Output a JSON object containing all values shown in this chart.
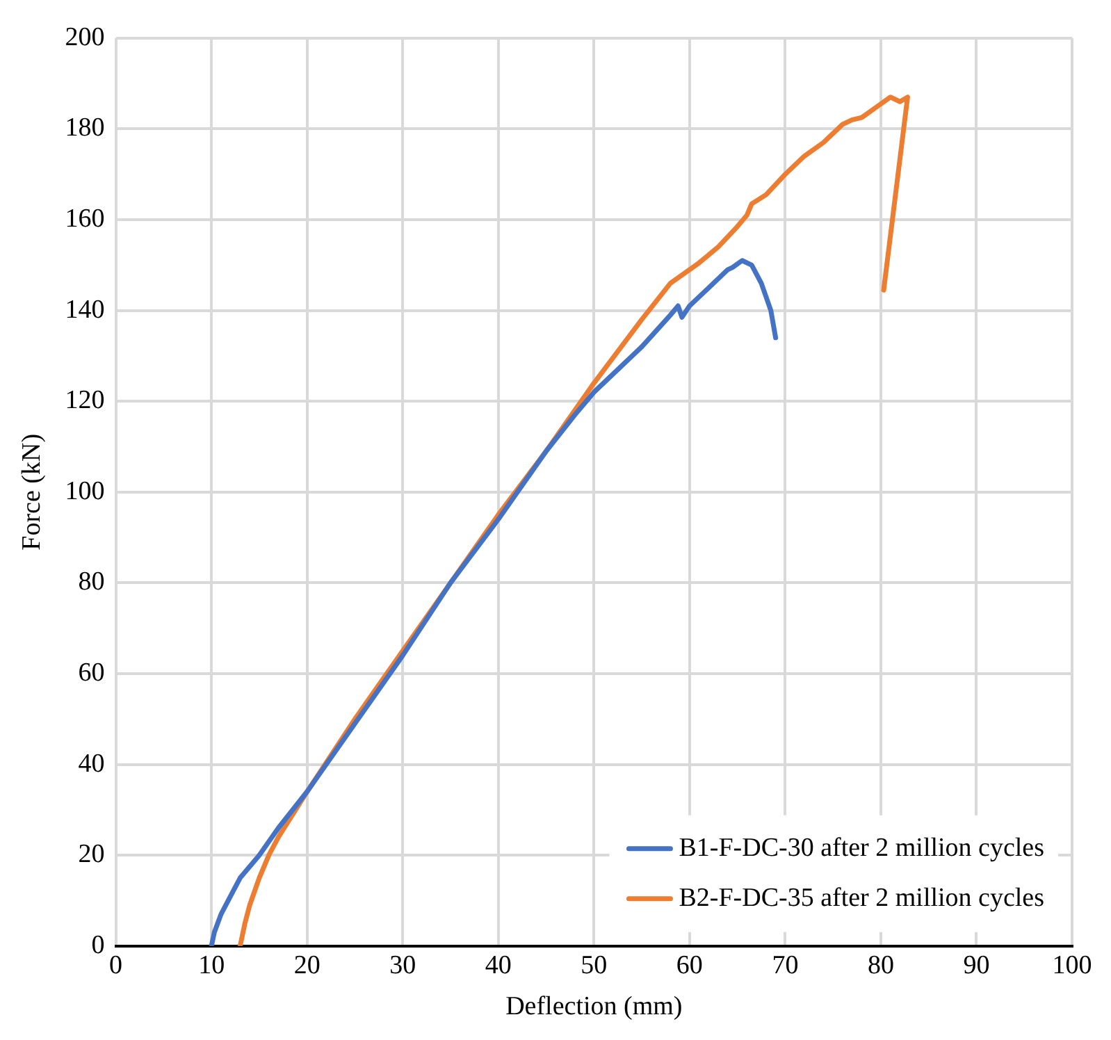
{
  "chart_data": {
    "type": "line",
    "xlabel": "Deflection (mm)",
    "ylabel": "Force (kN)",
    "xlim": [
      0,
      100
    ],
    "xticks": [
      0,
      10,
      20,
      30,
      40,
      50,
      60,
      70,
      80,
      90,
      100
    ],
    "ylim": [
      0,
      200
    ],
    "yticks": [
      0,
      20,
      40,
      60,
      80,
      100,
      120,
      140,
      160,
      180,
      200
    ],
    "grid": true,
    "legend": "bottom right",
    "marker": "none",
    "line_style": "solid",
    "series": [
      {
        "name": "B1-F-DC-30 after 2 million cycles",
        "color": "#4472c4",
        "x": [
          10,
          10.3,
          11,
          12,
          13,
          15,
          17,
          20,
          25,
          30,
          35,
          40,
          45,
          48,
          50,
          55,
          58,
          58.8,
          59.2,
          60,
          62,
          64,
          64.5,
          65.5,
          66.5,
          67.5,
          68.5,
          69
        ],
        "values": [
          0,
          3,
          7,
          11,
          15,
          20,
          26,
          34,
          49,
          64,
          80,
          94,
          109,
          117,
          122,
          132,
          139,
          141,
          138.5,
          141,
          145,
          149,
          149.5,
          151,
          150,
          146,
          140,
          134
        ]
      },
      {
        "name": "B2-F-DC-35 after 2 million cycles",
        "color": "#ed7d31",
        "x": [
          13,
          13.5,
          14,
          15,
          16,
          17,
          20,
          25,
          30,
          35,
          40,
          45,
          50,
          55,
          58,
          60,
          61,
          63,
          65,
          66,
          66.5,
          68,
          70,
          72,
          74,
          76,
          77,
          78,
          80,
          81,
          82,
          82.8,
          80.3
        ],
        "values": [
          0,
          5,
          9,
          15,
          20,
          24,
          34,
          50,
          65,
          80,
          95,
          109,
          124,
          138,
          146,
          149,
          150.5,
          154,
          158.5,
          161,
          163.5,
          165.5,
          170,
          174,
          177,
          181,
          182,
          182.5,
          185.5,
          187,
          186,
          187,
          144.5
        ]
      }
    ]
  }
}
